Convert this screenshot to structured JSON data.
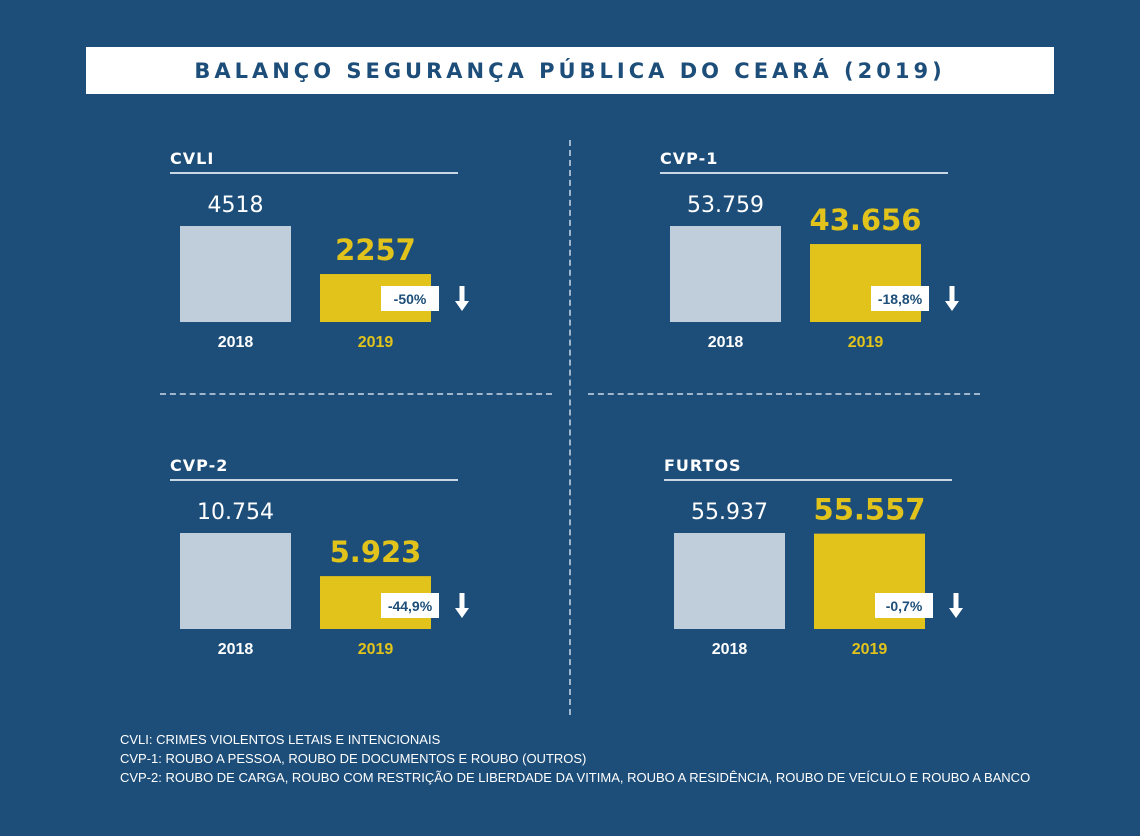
{
  "title": "BALANÇO SEGURANÇA PÚBLICA DO CEARÁ (2019)",
  "colors": {
    "background": "#1d4e79",
    "bar_2018": "#c0cddb",
    "bar_2019": "#e2c31b",
    "text_light": "#ffffff",
    "badge_bg": "#ffffff",
    "badge_text": "#1d4e79"
  },
  "chart_data": [
    {
      "type": "bar",
      "title": "CVLI",
      "categories": [
        "2018",
        "2019"
      ],
      "values": [
        4518,
        2257
      ],
      "value_labels": [
        "4518",
        "2257"
      ],
      "change_label": "-50%",
      "change_direction": "down"
    },
    {
      "type": "bar",
      "title": "CVP-1",
      "categories": [
        "2018",
        "2019"
      ],
      "values": [
        53759,
        43656
      ],
      "value_labels": [
        "53.759",
        "43.656"
      ],
      "change_label": "-18,8%",
      "change_direction": "down"
    },
    {
      "type": "bar",
      "title": "CVP-2",
      "categories": [
        "2018",
        "2019"
      ],
      "values": [
        10754,
        5923
      ],
      "value_labels": [
        "10.754",
        "5.923"
      ],
      "change_label": "-44,9%",
      "change_direction": "down"
    },
    {
      "type": "bar",
      "title": "FURTOS",
      "categories": [
        "2018",
        "2019"
      ],
      "values": [
        55937,
        55557
      ],
      "value_labels": [
        "55.937",
        "55.557"
      ],
      "change_label": "-0,7%",
      "change_direction": "down"
    }
  ],
  "legend": {
    "lines": [
      "CVLI: CRIMES VIOLENTOS LETAIS E INTENCIONAIS",
      "CVP-1: ROUBO A PESSOA, ROUBO DE DOCUMENTOS E ROUBO (OUTROS)",
      "CVP-2: ROUBO DE CARGA, ROUBO COM RESTRIÇÃO DE LIBERDADE DA VITIMA, ROUBO A RESIDÊNCIA, ROUBO DE VEÍCULO E ROUBO A BANCO"
    ]
  }
}
